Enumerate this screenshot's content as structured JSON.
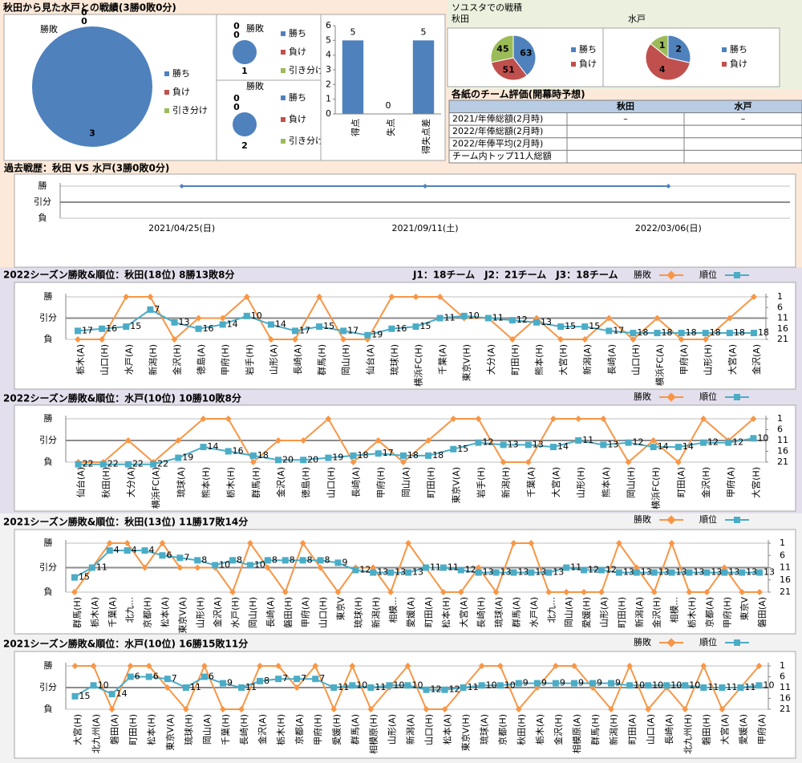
{
  "headings": [
    "秋田から見た水戸との戦績(3勝0敗0分)",
    "ソユスタでの戦積"
  ],
  "table": {
    "title": "各紙のチーム評価(開幕時予想)",
    "header": [
      "秋田",
      "水戸"
    ],
    "rows": [
      {
        "label": "2021/年俸総額(2月時)",
        "cells": [
          "–",
          "–"
        ]
      },
      {
        "label": "2022/年俸総額(2月時)"
      },
      {
        "label": "2022/年俸平均(2月時)"
      },
      {
        "label": "チーム内トップ11人総額"
      }
    ]
  },
  "chart_data": [
    {
      "type": "pie",
      "title": "勝敗",
      "categories": [
        "勝ち",
        "負け",
        "引き分け"
      ],
      "values": [
        3,
        0,
        0
      ],
      "colors": [
        "#4f81bd",
        "#c0504d",
        "#9bbb59"
      ]
    },
    {
      "type": "pie",
      "title": "勝敗",
      "categories": [
        "勝ち",
        "負け",
        "引き分け"
      ],
      "values": [
        1,
        0,
        0
      ],
      "colors": [
        "#4f81bd",
        "#c0504d",
        "#9bbb59"
      ]
    },
    {
      "type": "pie",
      "title": "勝敗",
      "categories": [
        "勝ち",
        "負け",
        "引き分け"
      ],
      "values": [
        2,
        0,
        0
      ],
      "colors": [
        "#4f81bd",
        "#c0504d",
        "#9bbb59"
      ]
    },
    {
      "type": "bar",
      "categories": [
        "得点",
        "失点",
        "得失点差"
      ],
      "values": [
        5,
        0,
        5
      ],
      "color": "#4f81bd",
      "ylim": [
        0,
        6
      ],
      "yticks": [
        0,
        1,
        2,
        3,
        4,
        5,
        6
      ]
    },
    {
      "type": "pie",
      "title": "秋田",
      "categories": [
        "勝ち",
        "負け",
        null
      ],
      "values": [
        63,
        51,
        45
      ],
      "colors": [
        "#4f81bd",
        "#c0504d",
        "#9bbb59"
      ]
    },
    {
      "type": "pie",
      "title": "水戸",
      "categories": [
        "勝ち",
        "負け",
        null
      ],
      "values": [
        2,
        4,
        1
      ],
      "colors": [
        "#4f81bd",
        "#c0504d",
        "#9bbb59"
      ]
    },
    {
      "type": "line",
      "title": "過去戦歴：秋田 VS 水戸(3勝0敗0分)",
      "categories": [
        "2021/04/25(日)",
        "2021/09/11(土)",
        "2022/03/06(日)"
      ],
      "series": [
        {
          "color": "#4f81bd",
          "values": [
            1,
            1,
            1
          ]
        }
      ],
      "ylim": [
        -1,
        1
      ],
      "yticks": [
        {
          "value": 1,
          "label": "勝"
        },
        {
          "value": 0,
          "label": "引分"
        },
        {
          "value": -1,
          "label": "負"
        }
      ],
      "grid": true
    },
    {
      "type": "line",
      "title": "2022シーズン勝敗&順位：秋田(18位) 8勝13敗8分",
      "annotation": "J1：18チーム　J2：21チーム　J3：18チーム",
      "categories": [
        "栃木(A)",
        "山口(H)",
        "水戸(A)",
        "新潟(H)",
        "金沢(H)",
        "徳島(A)",
        "甲府(H)",
        "岩手(H)",
        "山形(A)",
        "長崎(A)",
        "群馬(H)",
        "岡山(H)",
        "仙台(A)",
        "琉球(H)",
        "横浜FC(H)",
        "千葉(A)",
        "東京V(H)",
        "大分(A)",
        "町田(H)",
        "熊本(H)",
        "大宮(H)",
        "新潟(A)",
        "長崎(A)",
        "山口(H)",
        "横浜FC(A)",
        "甲府(A)",
        "山形(H)",
        "大宮(A)",
        "金沢(A)"
      ],
      "series": [
        {
          "name": "勝敗",
          "color": "#f79646",
          "values": [
            -1,
            -1,
            1,
            1,
            -1,
            0,
            0,
            1,
            -1,
            -1,
            1,
            -1,
            -1,
            1,
            1,
            1,
            0,
            0,
            -1,
            0,
            -1,
            -1,
            0,
            -1,
            0,
            -1,
            -1,
            0,
            1
          ]
        },
        {
          "name": "順位",
          "color": "#4bacc6",
          "axis": "y2",
          "data_labels": true,
          "values": [
            17,
            16,
            15,
            7,
            13,
            16,
            14,
            10,
            14,
            17,
            15,
            17,
            19,
            16,
            15,
            11,
            10,
            11,
            12,
            13,
            15,
            15,
            17,
            18,
            18,
            18,
            18,
            18,
            18
          ]
        }
      ],
      "ylim": [
        -1,
        1
      ],
      "yticks": [
        {
          "value": 1,
          "label": "勝"
        },
        {
          "value": 0,
          "label": "引分"
        },
        {
          "value": -1,
          "label": "負"
        }
      ],
      "y2lim": [
        21,
        1
      ],
      "y2ticks": [
        1,
        6,
        11,
        16,
        21
      ],
      "grid": true
    },
    {
      "type": "line",
      "title": "2022シーズン勝敗&順位：水戸(10位) 10勝10敗8分",
      "categories": [
        "仙台(A)",
        "秋田(H)",
        "大分(A)",
        "横浜FC(A)",
        "琉球(A)",
        "熊本(H)",
        "栃木(H)",
        "群馬(H)",
        "金沢(A)",
        "徳島(H)",
        "山口(H)",
        "長崎(A)",
        "甲府(H)",
        "岡山(A)",
        "町田(H)",
        "東京V(A)",
        "岩手(H)",
        "新潟(H)",
        "千葉(A)",
        "大宮(A)",
        "山形(H)",
        "熊本(A)",
        "岡山(H)",
        "横浜FC(H)",
        "町田(A)",
        "金沢(H)",
        "甲府(A)",
        "大宮(H)"
      ],
      "series": [
        {
          "name": "勝敗",
          "color": "#f79646",
          "values": [
            -1,
            -1,
            0,
            -1,
            0,
            1,
            1,
            -1,
            0,
            0,
            1,
            -1,
            0,
            -1,
            0,
            1,
            1,
            -1,
            -1,
            1,
            1,
            1,
            -1,
            0,
            -1,
            1,
            0,
            1
          ]
        },
        {
          "name": "順位",
          "color": "#4bacc6",
          "axis": "y2",
          "data_labels": true,
          "values": [
            22,
            22,
            22,
            22,
            19,
            14,
            16,
            18,
            20,
            20,
            19,
            18,
            17,
            18,
            18,
            15,
            12,
            13,
            13,
            14,
            11,
            13,
            12,
            14,
            14,
            12,
            12,
            10
          ]
        }
      ],
      "ylim": [
        -1,
        1
      ],
      "yticks": [
        {
          "value": 1,
          "label": "勝"
        },
        {
          "value": 0,
          "label": "引分"
        },
        {
          "value": -1,
          "label": "負"
        }
      ],
      "y2lim": [
        21,
        1
      ],
      "y2ticks": [
        1,
        6,
        11,
        16,
        21
      ],
      "grid": true
    },
    {
      "type": "line",
      "title": "2021シーズン勝敗&順位：秋田(13位) 11勝17敗14分",
      "categories": [
        "群馬(H)",
        "栃木(A)",
        "千葉(A)",
        "北九...",
        "京都(H)",
        "松本(A)",
        "東京V(A)",
        "山形(H)",
        "金沢(A)",
        "水戸(H)",
        "岡山(H)",
        "長崎(A)",
        "磐田(H)",
        "甲府(A)",
        "山口(H)",
        "東京V",
        "琉球(H)",
        "新潟(H)",
        "相模...",
        "愛媛(A)",
        "町田(A)",
        "松本(H)",
        "大宮(A)",
        "長崎(H)",
        "琉球(A)",
        "群馬(A)",
        "水戸(A)",
        "北九...",
        "岡山(A)",
        "愛媛(H)",
        "山形(A)",
        "町田(H)",
        "新潟(A)",
        "金沢(H)",
        "相模...",
        "栃木(H)",
        "京都(A)",
        "甲府(H)",
        "東京V",
        "磐田(A)"
      ],
      "series": [
        {
          "name": "勝敗",
          "color": "#f79646",
          "values": [
            -1,
            0,
            1,
            1,
            0,
            1,
            0,
            0,
            0,
            -1,
            1,
            0,
            -1,
            1,
            0,
            -1,
            0,
            0,
            -1,
            1,
            0,
            -1,
            -1,
            0,
            -1,
            1,
            1,
            -1,
            -1,
            -1,
            -1,
            1,
            0,
            -1,
            1,
            -1,
            -1,
            0,
            -1,
            -1
          ]
        },
        {
          "name": "順位",
          "color": "#4bacc6",
          "axis": "y2",
          "data_labels": true,
          "values": [
            15,
            11,
            4,
            4,
            4,
            6,
            7,
            8,
            10,
            8,
            10,
            8,
            8,
            8,
            8,
            9,
            12,
            13,
            13,
            13,
            11,
            11,
            12,
            13,
            13,
            13,
            13,
            13,
            11,
            12,
            12,
            13,
            13,
            13,
            13,
            13,
            13,
            13,
            13,
            13
          ]
        }
      ],
      "ylim": [
        -1,
        1
      ],
      "yticks": [
        {
          "value": 1,
          "label": "勝"
        },
        {
          "value": 0,
          "label": "引分"
        },
        {
          "value": -1,
          "label": "負"
        }
      ],
      "y2lim": [
        21,
        1
      ],
      "y2ticks": [
        1,
        6,
        11,
        16,
        21
      ],
      "grid": true
    },
    {
      "type": "line",
      "title": "2021シーズン勝敗&順位：水戸(10位) 16勝15敗11分",
      "categories": [
        "大宮(H)",
        "北九州(A)",
        "磐田(A)",
        "町田(H)",
        "松本(H)",
        "東京V(A)",
        "琉球(H)",
        "岡山(A)",
        "千葉(H)",
        "長崎(H)",
        "金沢(A)",
        "栃木(H)",
        "京都(A)",
        "甲府(H)",
        "愛媛(H)",
        "群馬(A)",
        "相模原(H)",
        "山形(A)",
        "新潟(A)",
        "山口(H)",
        "松本(A)",
        "東京V(H)",
        "琉球(A)",
        "京都(H)",
        "秋田(H)",
        "栃木(A)",
        "金沢(H)",
        "相模原(A)",
        "群馬(H)",
        "新潟(H)",
        "町田(A)",
        "山口(A)",
        "長崎(A)",
        "北九州(H)",
        "磐田(H)",
        "大宮(A)",
        "愛媛(A)",
        "甲府(A)"
      ],
      "series": [
        {
          "name": "勝敗",
          "color": "#f79646",
          "values": [
            1,
            1,
            -1,
            1,
            1,
            0,
            -1,
            1,
            -1,
            -1,
            1,
            1,
            0,
            1,
            -1,
            1,
            -1,
            0,
            1,
            -1,
            -1,
            0,
            1,
            1,
            -1,
            0,
            1,
            1,
            0,
            -1,
            1,
            -1,
            0,
            -1,
            1,
            -1,
            0,
            1
          ]
        },
        {
          "name": "順位",
          "color": "#4bacc6",
          "axis": "y2",
          "data_labels": true,
          "values": [
            15,
            10,
            14,
            6,
            6,
            7,
            11,
            6,
            9,
            11,
            8,
            7,
            7,
            7,
            11,
            10,
            11,
            10,
            10,
            12,
            12,
            11,
            10,
            10,
            9,
            9,
            9,
            9,
            9,
            9,
            10,
            10,
            10,
            10,
            11,
            11,
            11,
            10
          ]
        }
      ],
      "ylim": [
        -1,
        1
      ],
      "yticks": [
        {
          "value": 1,
          "label": "勝"
        },
        {
          "value": 0,
          "label": "引分"
        },
        {
          "value": -1,
          "label": "負"
        }
      ],
      "y2lim": [
        21,
        1
      ],
      "y2ticks": [
        1,
        6,
        11,
        16,
        21
      ],
      "grid": true
    }
  ]
}
